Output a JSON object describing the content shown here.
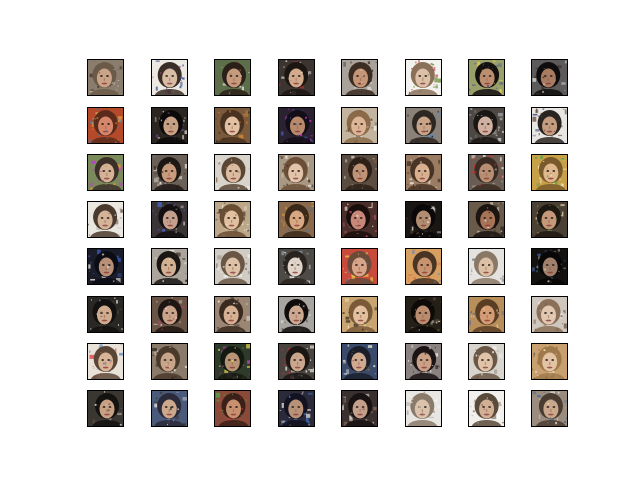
{
  "figure": {
    "background": "#ffffff",
    "frame_color": "#000000",
    "rows": 8,
    "cols": 8
  },
  "samples": [
    {
      "bg": "#8a7d6e",
      "hair": "#6b5a48",
      "skin": "#c9a488",
      "noise": [
        "#d6d0c6",
        "#4a3e34"
      ]
    },
    {
      "bg": "#ece8e2",
      "hair": "#3a2e26",
      "skin": "#d8bca4",
      "noise": [
        "#b04a8a",
        "#2c4a8c"
      ]
    },
    {
      "bg": "#5c6e4a",
      "hair": "#2a2018",
      "skin": "#c69a7c",
      "noise": [
        "#e6e2da",
        "#7a5a3e"
      ]
    },
    {
      "bg": "#3c3430",
      "hair": "#1c1612",
      "skin": "#d2aa8c",
      "noise": [
        "#e2e0dc",
        "#aa3030"
      ]
    },
    {
      "bg": "#a8a29a",
      "hair": "#3c2c22",
      "skin": "#c49676",
      "noise": [
        "#1e1a16",
        "#e8e4de"
      ]
    },
    {
      "bg": "#f4f2ee",
      "hair": "#8a7058",
      "skin": "#dcc0a8",
      "noise": [
        "#6a8a3a",
        "#c43a3a"
      ]
    },
    {
      "bg": "#9aa06a",
      "hair": "#141010",
      "skin": "#bc8e70",
      "noise": [
        "#3e4e8e",
        "#ecd24a"
      ]
    },
    {
      "bg": "#5c5a5a",
      "hair": "#0e0c0c",
      "skin": "#a87c60",
      "noise": [
        "#d8d4d0",
        "#3a2e28"
      ]
    },
    {
      "bg": "#b44a2a",
      "hair": "#5a2a1a",
      "skin": "#d6866a",
      "noise": [
        "#e0a040",
        "#3a7ab0"
      ]
    },
    {
      "bg": "#2c2622",
      "hair": "#0c0a08",
      "skin": "#c8a284",
      "noise": [
        "#f2eee8",
        "#6e4a8e"
      ]
    },
    {
      "bg": "#7a5a3a",
      "hair": "#4a3220",
      "skin": "#e2c0a2",
      "noise": [
        "#d68a3a",
        "#2a2220"
      ]
    },
    {
      "bg": "#2a2230",
      "hair": "#140e18",
      "skin": "#b88a6a",
      "noise": [
        "#4a6ad8",
        "#d83ad0"
      ]
    },
    {
      "bg": "#c2b49e",
      "hair": "#8a6a48",
      "skin": "#dcb496",
      "noise": [
        "#f0ece4",
        "#4a3a2c"
      ]
    },
    {
      "bg": "#8a8278",
      "hair": "#2e2620",
      "skin": "#caa486",
      "noise": [
        "#5a8ac2",
        "#1a1614"
      ]
    },
    {
      "bg": "#4e4844",
      "hair": "#1a1614",
      "skin": "#d0b0a0",
      "noise": [
        "#e8e4e0",
        "#9a9aa0"
      ]
    },
    {
      "bg": "#e8e6e2",
      "hair": "#2a2420",
      "skin": "#c49c80",
      "noise": [
        "#6a4a3a",
        "#3a4a6a"
      ]
    },
    {
      "bg": "#7a8a5a",
      "hair": "#3a3028",
      "skin": "#d4b296",
      "noise": [
        "#c43ad8",
        "#e8a03a"
      ]
    },
    {
      "bg": "#6a6058",
      "hair": "#1e1814",
      "skin": "#c89a7c",
      "noise": [
        "#e4e0da",
        "#3a2a22"
      ]
    },
    {
      "bg": "#d8d4cc",
      "hair": "#5a4634",
      "skin": "#dcbca0",
      "noise": [
        "#f4f2ee",
        "#8a6a4e"
      ]
    },
    {
      "bg": "#a89884",
      "hair": "#6a4e36",
      "skin": "#e2c4aa",
      "noise": [
        "#f0e8dc",
        "#3e2e24"
      ]
    },
    {
      "bg": "#5a4c40",
      "hair": "#2c2018",
      "skin": "#c09276",
      "noise": [
        "#ded6cc",
        "#7a5a40"
      ]
    },
    {
      "bg": "#9a7c62",
      "hair": "#4a3426",
      "skin": "#d8b090",
      "noise": [
        "#ece6dc",
        "#2a1e18"
      ]
    },
    {
      "bg": "#6a5e54",
      "hair": "#3a2c22",
      "skin": "#b88e72",
      "noise": [
        "#d02e2e",
        "#e8e2da"
      ]
    },
    {
      "bg": "#c8a048",
      "hair": "#7a5a2a",
      "skin": "#e0b88e",
      "noise": [
        "#5aa04a",
        "#f0e6c0"
      ]
    },
    {
      "bg": "#eae6e0",
      "hair": "#4a3a2e",
      "skin": "#d4b498",
      "noise": [
        "#6a5a4a",
        "#bcbab6"
      ]
    },
    {
      "bg": "#3a3436",
      "hair": "#141012",
      "skin": "#c4a08c",
      "noise": [
        "#4a6ad0",
        "#e2dcd4"
      ]
    },
    {
      "bg": "#bca888",
      "hair": "#6a4e34",
      "skin": "#e0c0a0",
      "noise": [
        "#f2ece2",
        "#2e2620"
      ]
    },
    {
      "bg": "#8a6a4a",
      "hair": "#3a2818",
      "skin": "#d8a882",
      "noise": [
        "#e8a84a",
        "#5a6e8a"
      ]
    },
    {
      "bg": "#4a2e2a",
      "hair": "#1a0e0c",
      "skin": "#c88878",
      "noise": [
        "#d85a8a",
        "#e8d8c8"
      ]
    },
    {
      "bg": "#1a1614",
      "hair": "#0a0808",
      "skin": "#b08c70",
      "noise": [
        "#e4e0da",
        "#4a3a2e"
      ]
    },
    {
      "bg": "#6a5a4a",
      "hair": "#1c1410",
      "skin": "#a87458",
      "noise": [
        "#e8e2d8",
        "#2a2420"
      ]
    },
    {
      "bg": "#4a4034",
      "hair": "#1e1812",
      "skin": "#c49878",
      "noise": [
        "#6a9a4a",
        "#d8c8a8"
      ]
    },
    {
      "bg": "#1a1c2a",
      "hair": "#0c0c14",
      "skin": "#b89078",
      "noise": [
        "#3a5ab0",
        "#e2dcd2"
      ]
    },
    {
      "bg": "#aaa49c",
      "hair": "#1a1614",
      "skin": "#d2b092",
      "noise": [
        "#f0ece6",
        "#3a2e26"
      ]
    },
    {
      "bg": "#d0ccc4",
      "hair": "#6a5644",
      "skin": "#dec2a8",
      "noise": [
        "#f6f4f0",
        "#8a7a6a"
      ]
    },
    {
      "bg": "#4e4a46",
      "hair": "#2a2420",
      "skin": "#e0d4c8",
      "noise": [
        "#f2f0ec",
        "#8a9aa8"
      ]
    },
    {
      "bg": "#c84a3a",
      "hair": "#6a4a38",
      "skin": "#d8a488",
      "noise": [
        "#e8c04a",
        "#4a7ab8"
      ]
    },
    {
      "bg": "#d8a060",
      "hair": "#4a3424",
      "skin": "#c89470",
      "noise": [
        "#5a8ac8",
        "#e85a3a"
      ]
    },
    {
      "bg": "#e4e2de",
      "hair": "#8a7866",
      "skin": "#dcc0a6",
      "noise": [
        "#6a6a7a",
        "#f2f0ec"
      ]
    },
    {
      "bg": "#141210",
      "hair": "#080606",
      "skin": "#a0806a",
      "noise": [
        "#3a5a8a",
        "#d8d0c4"
      ]
    },
    {
      "bg": "#2a2824",
      "hair": "#121010",
      "skin": "#d0ac8e",
      "noise": [
        "#eae6e0",
        "#5a4a3c"
      ]
    },
    {
      "bg": "#6a5446",
      "hair": "#1e1612",
      "skin": "#caa48a",
      "noise": [
        "#f2eee8",
        "#b04a6a"
      ]
    },
    {
      "bg": "#9a8672",
      "hair": "#3a2a20",
      "skin": "#d6b092",
      "noise": [
        "#e6e0d6",
        "#2e2420"
      ]
    },
    {
      "bg": "#a8a4a0",
      "hair": "#0e0c0c",
      "skin": "#cca890",
      "noise": [
        "#f0ece8",
        "#3a2e2a"
      ]
    },
    {
      "bg": "#c8a470",
      "hair": "#7a5a38",
      "skin": "#e2c09e",
      "noise": [
        "#f0dca8",
        "#4a3a2a"
      ]
    },
    {
      "bg": "#242018",
      "hair": "#0e0a08",
      "skin": "#b88c6c",
      "noise": [
        "#d8d2c8",
        "#6a5a3a"
      ]
    },
    {
      "bg": "#b88e5a",
      "hair": "#5a3e24",
      "skin": "#d49c74",
      "noise": [
        "#4a5ab8",
        "#e8d0a0"
      ]
    },
    {
      "bg": "#cfc7bd",
      "hair": "#8a7058",
      "skin": "#e2c8b0",
      "noise": [
        "#f4f0ea",
        "#6a5a4a"
      ]
    },
    {
      "bg": "#e8e2d8",
      "hair": "#5a4636",
      "skin": "#d8b496",
      "noise": [
        "#e0484a",
        "#3a6ac0"
      ]
    },
    {
      "bg": "#8a7a6a",
      "hair": "#4a3a2c",
      "skin": "#c8a488",
      "noise": [
        "#e4ded4",
        "#2e2620"
      ]
    },
    {
      "bg": "#2e3a2a",
      "hair": "#141a12",
      "skin": "#b89474",
      "noise": [
        "#d84ac8",
        "#e8d84a"
      ]
    },
    {
      "bg": "#4a4440",
      "hair": "#1a1614",
      "skin": "#caa68c",
      "noise": [
        "#f2eee8",
        "#aa2e3a"
      ]
    },
    {
      "bg": "#3a4a6a",
      "hair": "#1a1e2a",
      "skin": "#d0aa8e",
      "noise": [
        "#e4ded6",
        "#6a5a4a"
      ]
    },
    {
      "bg": "#8a8280",
      "hair": "#1a1414",
      "skin": "#caa086",
      "noise": [
        "#eae6e2",
        "#3a2e2a"
      ]
    },
    {
      "bg": "#d8d4ce",
      "hair": "#6a5644",
      "skin": "#e0c4aa",
      "noise": [
        "#f4f2ee",
        "#8a7a68"
      ]
    },
    {
      "bg": "#c8a070",
      "hair": "#a07a4a",
      "skin": "#e2c4a4",
      "noise": [
        "#f2e8d0",
        "#6a5a48"
      ]
    },
    {
      "bg": "#3a3632",
      "hair": "#141210",
      "skin": "#c8a084",
      "noise": [
        "#e4ded6",
        "#5a4a3a"
      ]
    },
    {
      "bg": "#4a5a7a",
      "hair": "#2a2a3a",
      "skin": "#cca88c",
      "noise": [
        "#e8e2d8",
        "#3a2e28"
      ]
    },
    {
      "bg": "#8a4a3a",
      "hair": "#3a2018",
      "skin": "#c8906e",
      "noise": [
        "#4ab04a",
        "#d83a3a"
      ]
    },
    {
      "bg": "#2a2a3a",
      "hair": "#121220",
      "skin": "#b89278",
      "noise": [
        "#4a7ad0",
        "#e2dcd2"
      ]
    },
    {
      "bg": "#3a3030",
      "hair": "#181212",
      "skin": "#c4a08a",
      "noise": [
        "#e8e2dc",
        "#8a6a5a"
      ]
    },
    {
      "bg": "#e8e6e2",
      "hair": "#8a7a6a",
      "skin": "#dac2ac",
      "noise": [
        "#f4f2ee",
        "#a8a09a"
      ]
    },
    {
      "bg": "#f2f0ec",
      "hair": "#5a4a3a",
      "skin": "#d2b096",
      "noise": [
        "#faf8f6",
        "#8a7a6a"
      ]
    },
    {
      "bg": "#9a8c7e",
      "hair": "#4a3c30",
      "skin": "#caa88c",
      "noise": [
        "#e6e0d8",
        "#3a6a9a"
      ]
    }
  ]
}
